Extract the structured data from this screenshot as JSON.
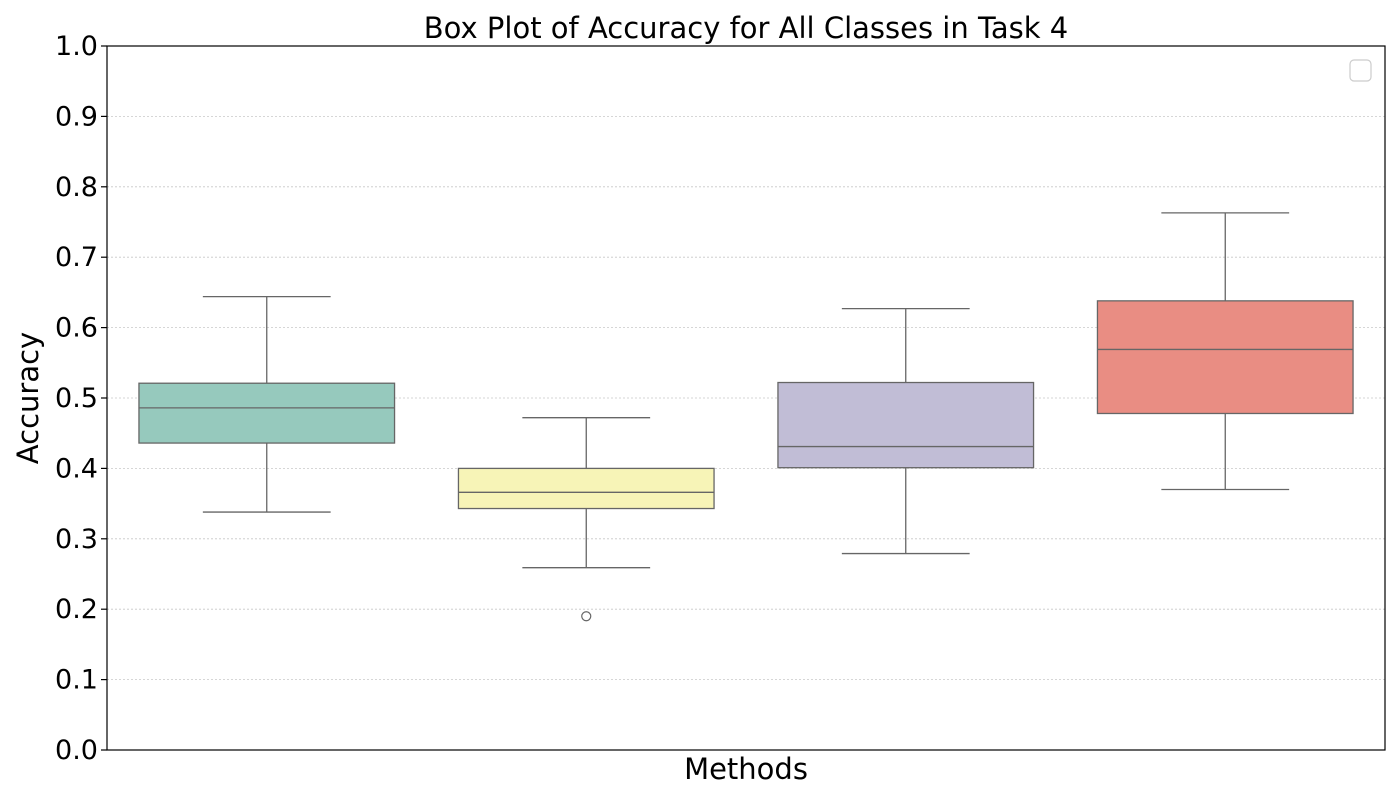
{
  "chart_data": {
    "type": "box",
    "title": "Box Plot of Accuracy for All Classes in Task 4",
    "xlabel": "Methods",
    "ylabel": "Accuracy",
    "ylim": [
      0.0,
      1.0
    ],
    "yticks": [
      "0.0",
      "0.1",
      "0.2",
      "0.3",
      "0.4",
      "0.5",
      "0.6",
      "0.7",
      "0.8",
      "0.9",
      "1.0"
    ],
    "grid": "horizontal dotted",
    "legend": "top-right (empty)",
    "boxes": [
      {
        "color": "#96c9bd",
        "whisker_low": 0.338,
        "q1": 0.436,
        "median": 0.486,
        "q3": 0.521,
        "whisker_high": 0.644,
        "outliers": []
      },
      {
        "color": "#f7f4b7",
        "whisker_low": 0.259,
        "q1": 0.343,
        "median": 0.366,
        "q3": 0.4,
        "whisker_high": 0.472,
        "outliers": [
          0.19
        ]
      },
      {
        "color": "#c1bdd6",
        "whisker_low": 0.279,
        "q1": 0.401,
        "median": 0.431,
        "q3": 0.522,
        "whisker_high": 0.627,
        "outliers": []
      },
      {
        "color": "#e98d83",
        "whisker_low": 0.37,
        "q1": 0.478,
        "median": 0.569,
        "q3": 0.638,
        "whisker_high": 0.763,
        "outliers": []
      }
    ]
  }
}
